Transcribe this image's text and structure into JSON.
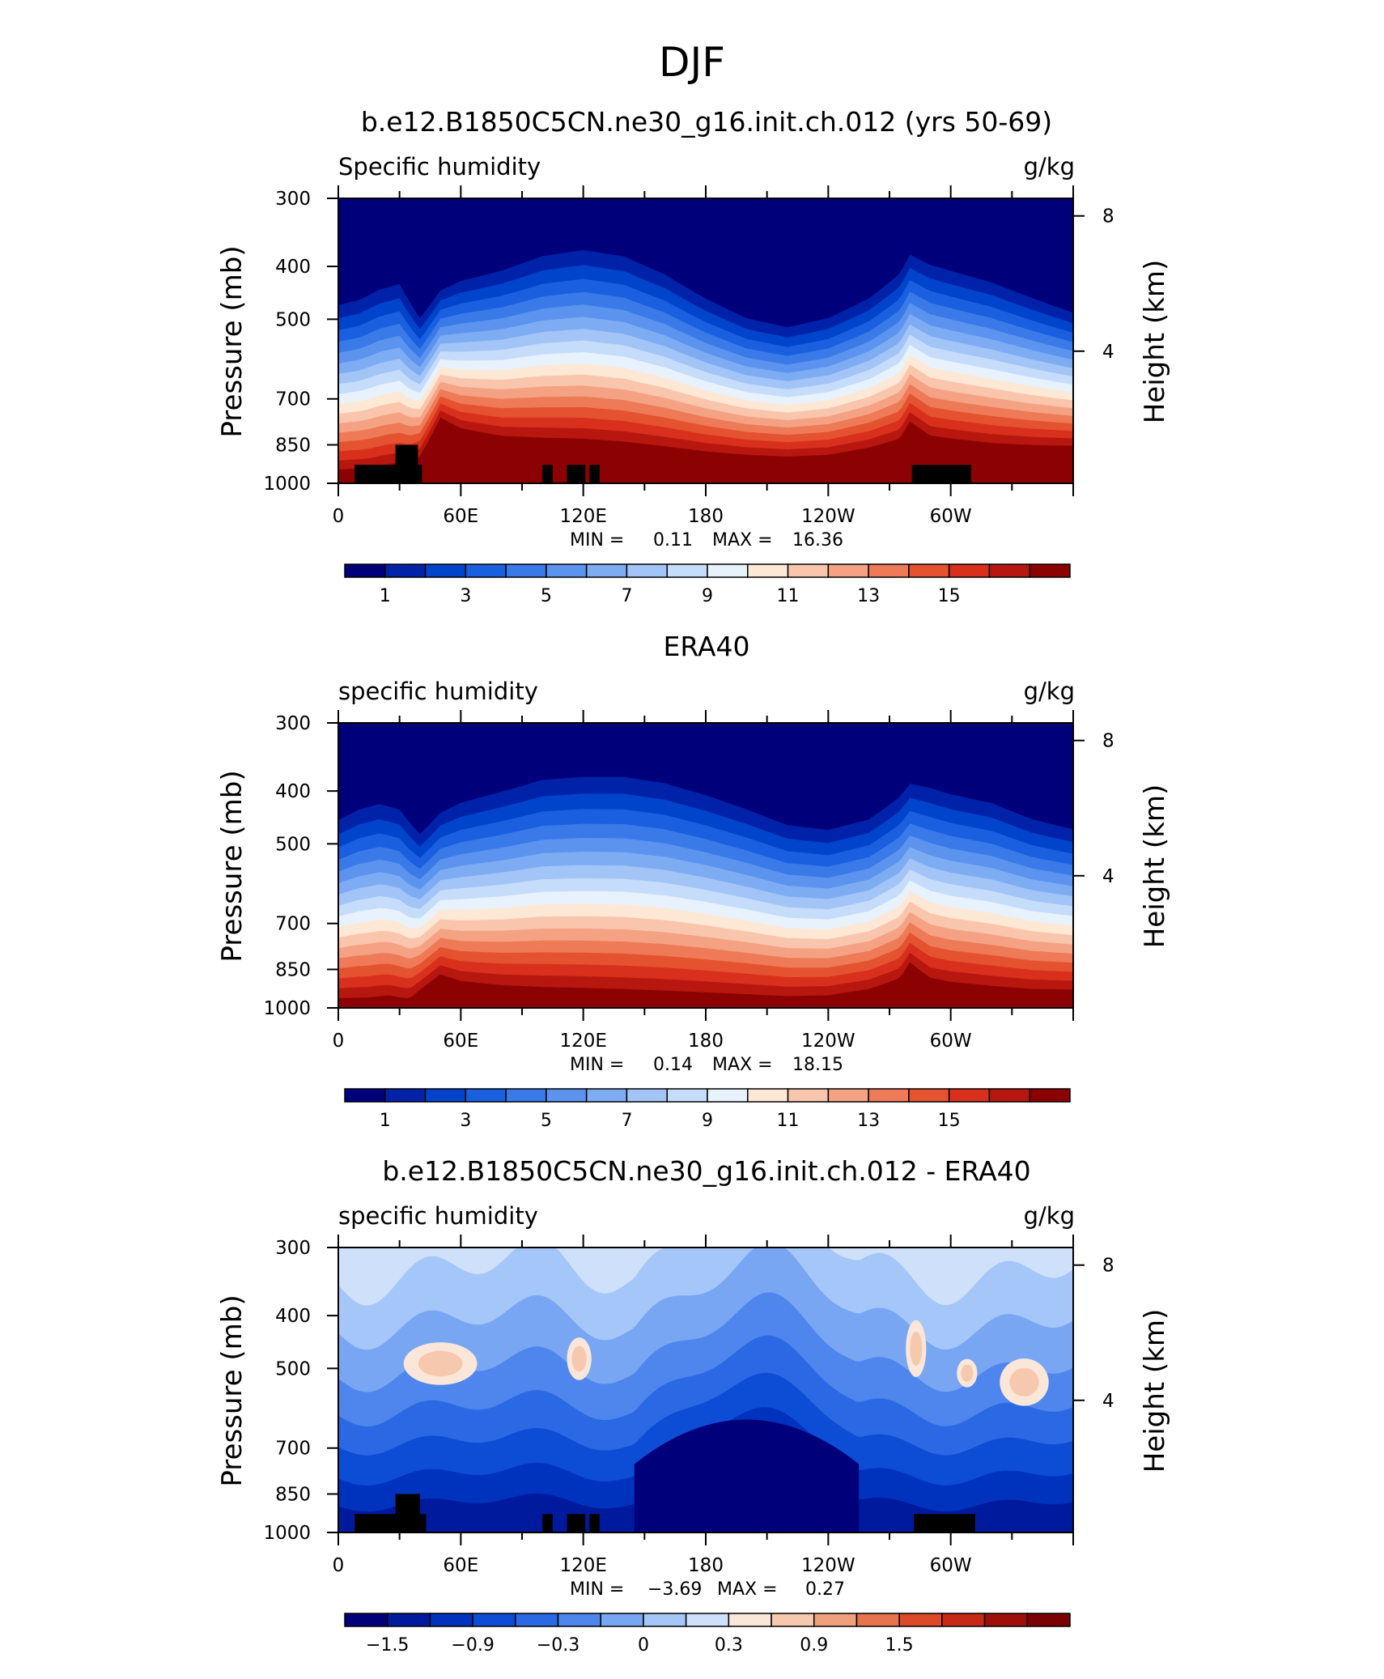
{
  "figure": {
    "title": "DJF"
  },
  "axes_common": {
    "ylabel": "Pressure (mb)",
    "y2label": "Height (km)",
    "units": "g/kg",
    "xticks": [
      "0",
      "60E",
      "120E",
      "180",
      "120W",
      "60W"
    ],
    "yticks": [
      "300",
      "400",
      "500",
      "700",
      "850",
      "1000"
    ],
    "y2ticks": [
      "8",
      "4"
    ]
  },
  "chart_data": [
    {
      "type": "heatmap",
      "title": "b.e12.B1850C5CN.ne30_g16.init.ch.012 (yrs 50-69)",
      "subtitle": "Specific humidity",
      "units": "g/kg",
      "xlabel": "",
      "ylabel": "Pressure (mb)",
      "y2label": "Height (km)",
      "xlim": [
        0,
        360
      ],
      "ylim": [
        1000,
        300
      ],
      "yscale": "log",
      "xticks": [
        "0",
        "60E",
        "120E",
        "180",
        "120W",
        "60W"
      ],
      "yticks": [
        300,
        400,
        500,
        700,
        850,
        1000
      ],
      "y2ticks": [
        8,
        4
      ],
      "stats": {
        "min_label": "MIN =",
        "min": "0.11",
        "max_label": "MAX =",
        "max": "16.36"
      },
      "colorbar": {
        "levels": [
          0.5,
          1.5,
          2.5,
          3.5,
          4.5,
          5.5,
          6.5,
          7.5,
          8.5,
          9.5,
          10.5,
          11.5,
          12.5,
          13.5,
          14.5
        ],
        "labels": [
          "1",
          "3",
          "5",
          "7",
          "9",
          "11",
          "13",
          "15"
        ]
      },
      "surface_pressure_profile": {
        "lon": [
          0,
          15,
          25,
          35,
          40,
          50,
          60,
          80,
          100,
          120,
          140,
          160,
          180,
          200,
          220,
          240,
          260,
          275,
          280,
          290,
          300,
          320,
          340,
          360
        ],
        "p": [
          980,
          975,
          960,
          950,
          920,
          780,
          820,
          850,
          860,
          865,
          875,
          890,
          905,
          915,
          920,
          915,
          890,
          860,
          800,
          850,
          860,
          875,
          880,
          880
        ]
      },
      "upper_profile": {
        "lon": [
          0,
          10,
          20,
          30,
          40,
          50,
          60,
          80,
          100,
          120,
          140,
          160,
          180,
          200,
          220,
          240,
          260,
          275,
          280,
          290,
          300,
          320,
          340,
          360
        ],
        "p": [
          440,
          430,
          410,
          400,
          470,
          420,
          400,
          380,
          355,
          345,
          355,
          385,
          430,
          470,
          490,
          470,
          430,
          385,
          355,
          370,
          380,
          400,
          430,
          460
        ]
      },
      "topography_blocks": [
        {
          "lon": [
            8,
            37
          ],
          "p_top": 925
        },
        {
          "lon": [
            28,
            39
          ],
          "p_top": 850
        },
        {
          "lon": [
            37,
            41
          ],
          "p_top": 925
        },
        {
          "lon": [
            100,
            105
          ],
          "p_top": 925
        },
        {
          "lon": [
            112,
            121
          ],
          "p_top": 925
        },
        {
          "lon": [
            123,
            128
          ],
          "p_top": 925
        },
        {
          "lon": [
            281,
            310
          ],
          "p_top": 925
        }
      ]
    },
    {
      "type": "heatmap",
      "title": "ERA40",
      "subtitle": "specific humidity",
      "units": "g/kg",
      "xlabel": "",
      "ylabel": "Pressure (mb)",
      "y2label": "Height (km)",
      "xlim": [
        0,
        360
      ],
      "ylim": [
        1000,
        300
      ],
      "yscale": "log",
      "xticks": [
        "0",
        "60E",
        "120E",
        "180",
        "120W",
        "60W"
      ],
      "yticks": [
        300,
        400,
        500,
        700,
        850,
        1000
      ],
      "y2ticks": [
        8,
        4
      ],
      "stats": {
        "min_label": "MIN =",
        "min": "0.14",
        "max_label": "MAX =",
        "max": "18.15"
      },
      "colorbar": {
        "levels": [
          0.5,
          1.5,
          2.5,
          3.5,
          4.5,
          5.5,
          6.5,
          7.5,
          8.5,
          9.5,
          10.5,
          11.5,
          12.5,
          13.5,
          14.5
        ],
        "labels": [
          "1",
          "3",
          "5",
          "7",
          "9",
          "11",
          "13",
          "15"
        ]
      },
      "surface_pressure_profile": {
        "lon": [
          0,
          15,
          25,
          30,
          35,
          40,
          50,
          60,
          80,
          100,
          120,
          140,
          160,
          180,
          200,
          220,
          240,
          260,
          275,
          280,
          290,
          300,
          320,
          340,
          360
        ],
        "p": [
          1000,
          1000,
          990,
          1000,
          1000,
          960,
          900,
          930,
          950,
          960,
          965,
          970,
          975,
          980,
          985,
          990,
          985,
          960,
          920,
          860,
          920,
          935,
          950,
          960,
          960
        ]
      },
      "upper_profile": {
        "lon": [
          0,
          10,
          20,
          30,
          40,
          50,
          60,
          80,
          100,
          120,
          140,
          160,
          180,
          200,
          220,
          240,
          260,
          275,
          280,
          290,
          300,
          320,
          340,
          360
        ],
        "p": [
          420,
          400,
          390,
          400,
          450,
          410,
          390,
          370,
          350,
          345,
          345,
          355,
          375,
          400,
          430,
          440,
          420,
          380,
          360,
          365,
          375,
          390,
          420,
          440
        ]
      },
      "topography_blocks": []
    },
    {
      "type": "heatmap",
      "title": "b.e12.B1850C5CN.ne30_g16.init.ch.012 - ERA40",
      "subtitle": "specific humidity",
      "units": "g/kg",
      "xlabel": "",
      "ylabel": "Pressure (mb)",
      "y2label": "Height (km)",
      "xlim": [
        0,
        360
      ],
      "ylim": [
        1000,
        300
      ],
      "yscale": "log",
      "xticks": [
        "0",
        "60E",
        "120E",
        "180",
        "120W",
        "60W"
      ],
      "yticks": [
        300,
        400,
        500,
        700,
        850,
        1000
      ],
      "y2ticks": [
        8,
        4
      ],
      "stats": {
        "min_label": "MIN =",
        "min": "−3.69",
        "max_label": "MAX =",
        "max": "0.27"
      },
      "colorbar": {
        "levels": [
          -2.1,
          -1.8,
          -1.5,
          -1.2,
          -0.9,
          -0.6,
          -0.3,
          0,
          0.3,
          0.6,
          0.9,
          1.2,
          1.5,
          1.8
        ],
        "labels": [
          "−1.5",
          "−0.9",
          "−0.3",
          "0",
          "0.3",
          "0.9",
          "1.5"
        ]
      },
      "positive_patches": [
        {
          "lon": 50,
          "p": 490,
          "rx": 18,
          "ry": 0.09
        },
        {
          "lon": 118,
          "p": 480,
          "rx": 6,
          "ry": 0.09
        },
        {
          "lon": 283,
          "p": 460,
          "rx": 5,
          "ry": 0.12
        },
        {
          "lon": 308,
          "p": 510,
          "rx": 5,
          "ry": 0.06
        },
        {
          "lon": 336,
          "p": 530,
          "rx": 12,
          "ry": 0.1
        }
      ],
      "deficit_core": {
        "lon": [
          145,
          255
        ],
        "p_top": 610
      },
      "topography_blocks": [
        {
          "lon": [
            8,
            37
          ],
          "p_top": 925
        },
        {
          "lon": [
            28,
            40
          ],
          "p_top": 850
        },
        {
          "lon": [
            37,
            43
          ],
          "p_top": 925
        },
        {
          "lon": [
            100,
            105
          ],
          "p_top": 925
        },
        {
          "lon": [
            112,
            121
          ],
          "p_top": 925
        },
        {
          "lon": [
            123,
            128
          ],
          "p_top": 925
        },
        {
          "lon": [
            282,
            312
          ],
          "p_top": 925
        }
      ]
    }
  ],
  "colors": {
    "q_scale": [
      "#00007a",
      "#0022a8",
      "#0044cc",
      "#1a5fe0",
      "#3a7ae8",
      "#5b93ef",
      "#7eacf3",
      "#a3c4f7",
      "#c6dcfb",
      "#e8f2fd",
      "#fde8d6",
      "#f9c6ad",
      "#f4a283",
      "#ee7a58",
      "#e5522f",
      "#d8301c",
      "#b8170f",
      "#8c0202"
    ],
    "diff_scale": [
      "#00007a",
      "#001a9e",
      "#0033bd",
      "#0d4dd6",
      "#2b68e3",
      "#4f86ed",
      "#78a6f3",
      "#a5c6f8",
      "#cfe0fb",
      "#fbe6da",
      "#f6c8ad",
      "#f0a07d",
      "#e8734d",
      "#dd4a27",
      "#c62a16",
      "#9f0f0a",
      "#7a0202"
    ],
    "topography": "#000000"
  }
}
